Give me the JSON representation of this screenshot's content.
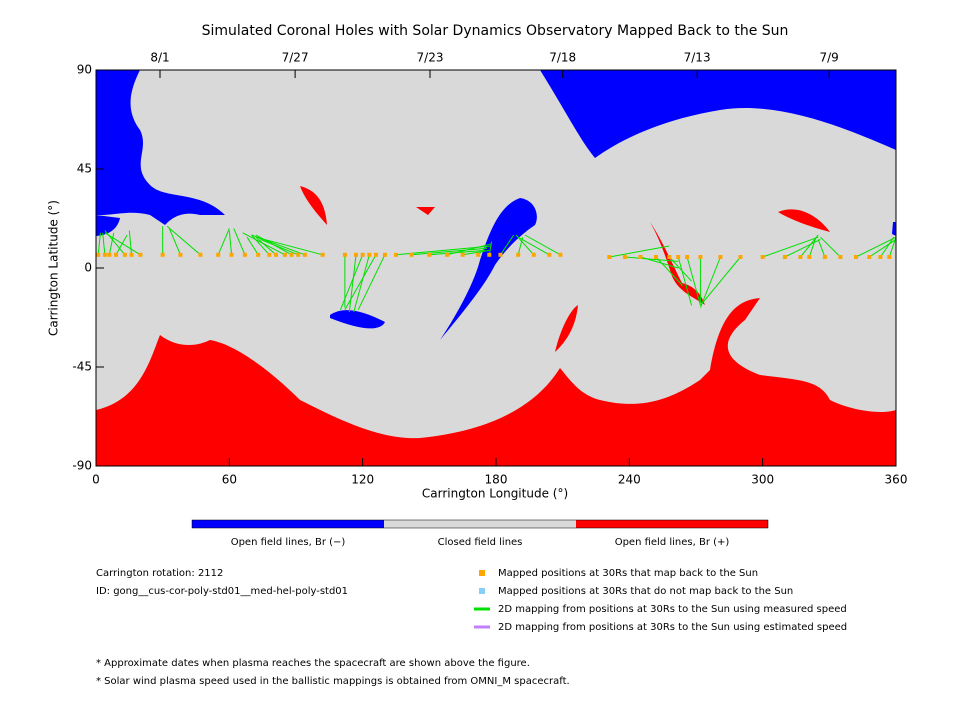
{
  "chart_data": {
    "type": "map",
    "title": "Simulated Coronal Holes with Solar Dynamics Observatory Mapped Back to the Sun",
    "xlabel": "Carrington Longitude (°)",
    "ylabel": "Carrington Latitude (°)",
    "xlim": [
      0,
      360
    ],
    "ylim": [
      -90,
      90
    ],
    "xticks": [
      0,
      60,
      120,
      180,
      240,
      300,
      360
    ],
    "yticks": [
      -90,
      -45,
      0,
      45,
      90
    ],
    "x2ticks": [
      {
        "value": 28.8,
        "label": "8/1"
      },
      {
        "value": 89.6,
        "label": "7/27"
      },
      {
        "value": 150.3,
        "label": "7/23"
      },
      {
        "value": 210,
        "label": "7/18"
      },
      {
        "value": 270.5,
        "label": "7/13"
      },
      {
        "value": 329.9,
        "label": "7/9"
      }
    ],
    "colorbar": {
      "categories": [
        "Open field lines, Br (−)",
        "Closed field lines",
        "Open field lines, Br (+)"
      ],
      "colors": [
        "#0000ff",
        "#d9d9d9",
        "#ff0000"
      ]
    },
    "series": [
      {
        "name": "Mapped positions at 30Rs that map back to the Sun",
        "color": "#ffa500",
        "marker": "square",
        "x": [
          1,
          4,
          6,
          9,
          13,
          16,
          20,
          30,
          38,
          47,
          55,
          61,
          67,
          73,
          78,
          81,
          85,
          88,
          91,
          94,
          102,
          112,
          117,
          120,
          123,
          126,
          130,
          135,
          142,
          150,
          158,
          165,
          172,
          177,
          182,
          190,
          197,
          204,
          209,
          231,
          238,
          245,
          252,
          258,
          262,
          266,
          272,
          281,
          290,
          300,
          310,
          317,
          321,
          328,
          335,
          342,
          348,
          353,
          357
        ],
        "values": [
          6,
          6,
          6,
          6,
          6,
          6,
          6,
          6,
          6,
          6,
          6,
          6,
          6,
          6,
          6,
          6,
          6,
          6,
          6,
          6,
          6,
          6,
          6,
          6,
          6,
          6,
          6,
          6,
          6,
          6,
          6,
          6,
          6,
          6,
          6,
          6,
          6,
          6,
          6,
          5,
          5,
          5,
          5,
          5,
          5,
          5,
          5,
          5,
          5,
          5,
          5,
          5,
          5,
          5,
          5,
          5,
          5,
          5,
          5
        ]
      },
      {
        "name": "Mapped positions at 30Rs that do not map back to the Sun",
        "color": "#87cefa",
        "marker": "square",
        "x": [],
        "values": []
      },
      {
        "name": "2D mapping from positions at 30Rs to the Sun using measured speed",
        "color": "#00e000",
        "marker": "line",
        "x": [
          2,
          3,
          8,
          14,
          4,
          15,
          4,
          30,
          33,
          32,
          60,
          60,
          62,
          68,
          70,
          72,
          66,
          72,
          74,
          70,
          72,
          112,
          114,
          110,
          116,
          112,
          118,
          178,
          176,
          175,
          178,
          177,
          176,
          178,
          188,
          192,
          189,
          190,
          193,
          258,
          262,
          262,
          264,
          268,
          268,
          272,
          272,
          272,
          272,
          325,
          326,
          325,
          324,
          325,
          326,
          360,
          360,
          359,
          360
        ],
        "values": [
          16,
          16,
          16,
          15,
          17,
          17,
          16,
          19,
          18,
          19,
          18,
          17,
          18,
          14,
          15,
          14,
          16,
          15,
          13,
          15,
          14,
          -18,
          -20,
          -19,
          -20,
          -19,
          -19,
          10,
          9,
          8,
          11,
          8,
          10,
          12,
          15,
          14,
          15,
          14,
          15,
          10,
          3,
          0,
          -8,
          -6,
          -17,
          -17,
          -16,
          -18,
          -17,
          14,
          13,
          15,
          14,
          13,
          14,
          14,
          13,
          14,
          14
        ]
      },
      {
        "name": "2D mapping from positions at 30Rs to the Sun using estimated speed",
        "color": "#c080ff",
        "marker": "line",
        "x": [],
        "values": []
      }
    ]
  },
  "info": {
    "rotation": "Carrington rotation: 2112",
    "id": "ID: gong__cus-cor-poly-std01__med-hel-poly-std01",
    "notes": [
      "* Approximate dates when plasma reaches the spacecraft are shown above the figure.",
      "* Solar wind plasma speed used in the ballistic mappings is obtained from OMNI_M spacecraft."
    ]
  }
}
